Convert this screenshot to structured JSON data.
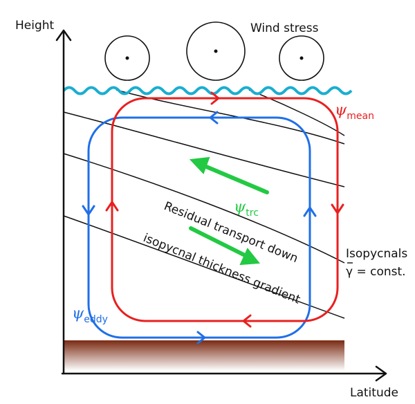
{
  "axes": {
    "y_label": "Height",
    "x_label": "Latitude"
  },
  "labels": {
    "wind_stress": "Wind stress",
    "psi_symbol": "ψ",
    "psi_mean_sub": "mean",
    "psi_trc_sub": "trc",
    "psi_eddy_sub": "eddy",
    "residual_line1": "Residual transport down",
    "residual_line2": "isopycnal thickness gradient",
    "isopycnals": "Isopycnals",
    "gamma_const": "γ = const."
  },
  "colors": {
    "mean": "#e8201f",
    "eddy": "#1f6fe8",
    "trc": "#23c943",
    "surface": "#1aaed0",
    "bottom_top": "#7a2a12",
    "bottom_bottom": "#ffffff",
    "isopycnal": "#111111"
  },
  "icons": {
    "wind_circle": "circle-dot-icon"
  }
}
